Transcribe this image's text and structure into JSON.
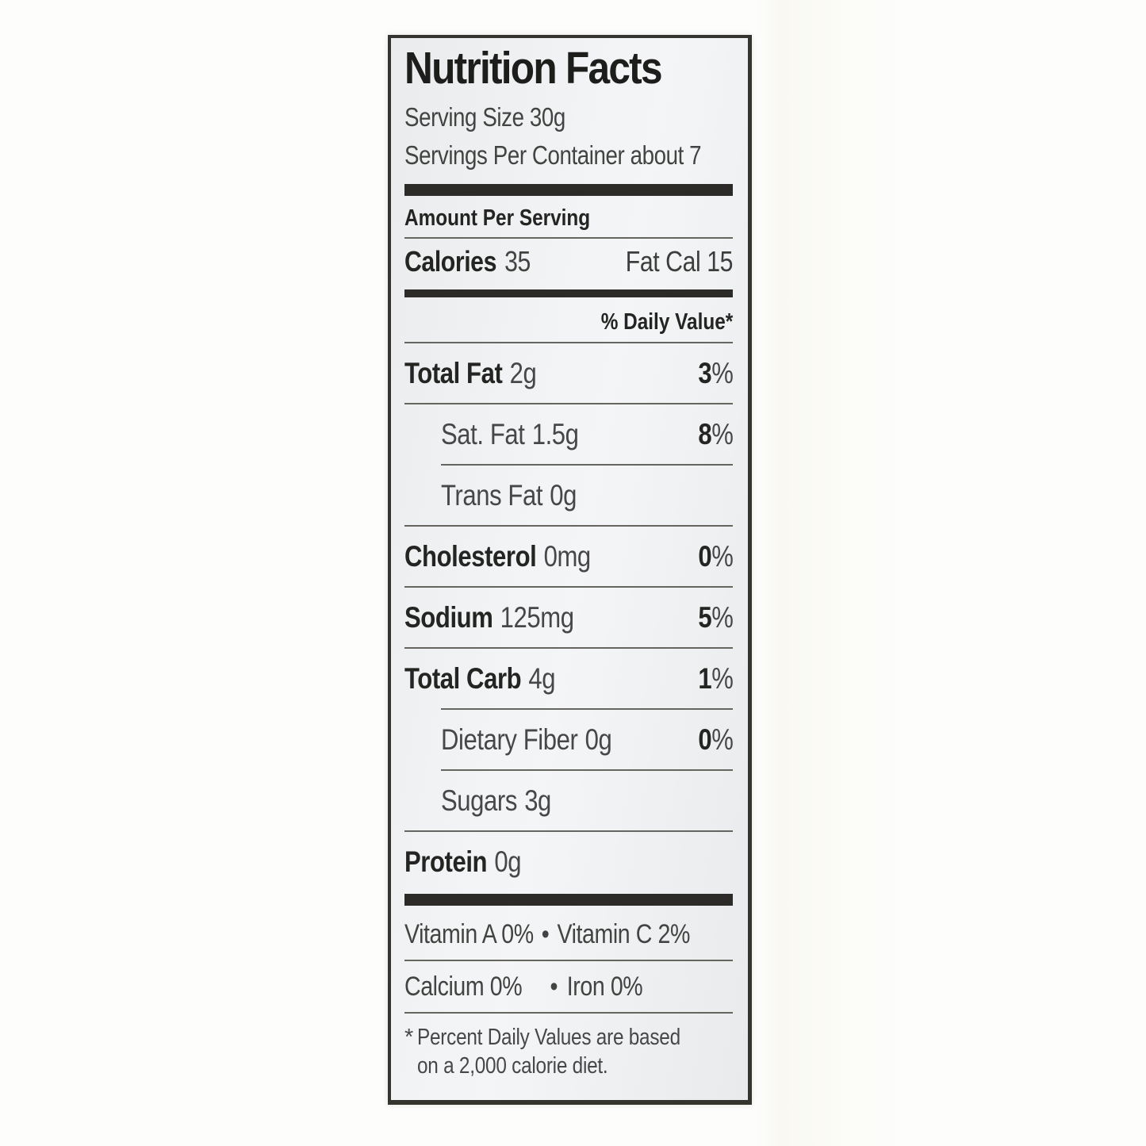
{
  "label": {
    "title": "Nutrition Facts",
    "serving_size": "Serving Size 30g",
    "servings_per_container": "Servings Per Container about 7",
    "amount_per_serving": "Amount Per Serving",
    "calories_label": "Calories",
    "calories_value": "35",
    "fat_calories": "Fat Cal 15",
    "daily_value_header": "% Daily Value*",
    "rows": [
      {
        "name": "Total Fat",
        "amount": "2g",
        "dv": "3%"
      },
      {
        "name": "Sat. Fat",
        "amount": "1.5g",
        "dv": "8%"
      },
      {
        "name": "Trans Fat",
        "amount": "0g",
        "dv": ""
      },
      {
        "name": "Cholesterol",
        "amount": "0mg",
        "dv": "0%"
      },
      {
        "name": "Sodium",
        "amount": "125mg",
        "dv": "5%"
      },
      {
        "name": "Total Carb",
        "amount": "4g",
        "dv": "1%"
      },
      {
        "name": "Dietary Fiber",
        "amount": "0g",
        "dv": "0%"
      },
      {
        "name": "Sugars",
        "amount": "3g",
        "dv": ""
      },
      {
        "name": "Protein",
        "amount": "0g",
        "dv": ""
      }
    ],
    "vitamin_row": {
      "left": "Vitamin A 0%",
      "separator": "•",
      "right": "Vitamin C 2%"
    },
    "mineral_row": {
      "left": "Calcium 0%",
      "separator": "•",
      "right": "Iron 0%"
    },
    "footnote": {
      "marker": "*",
      "lines": [
        "Percent Daily Values are based",
        "on a 2,000 calorie diet."
      ]
    },
    "colors": {
      "ink": "#242422",
      "regular_text": "#47474a",
      "separator_line": "#666560",
      "thick_bar": "#2c2b27",
      "label_background": "#f1f3f5",
      "border": "#35342f"
    }
  }
}
